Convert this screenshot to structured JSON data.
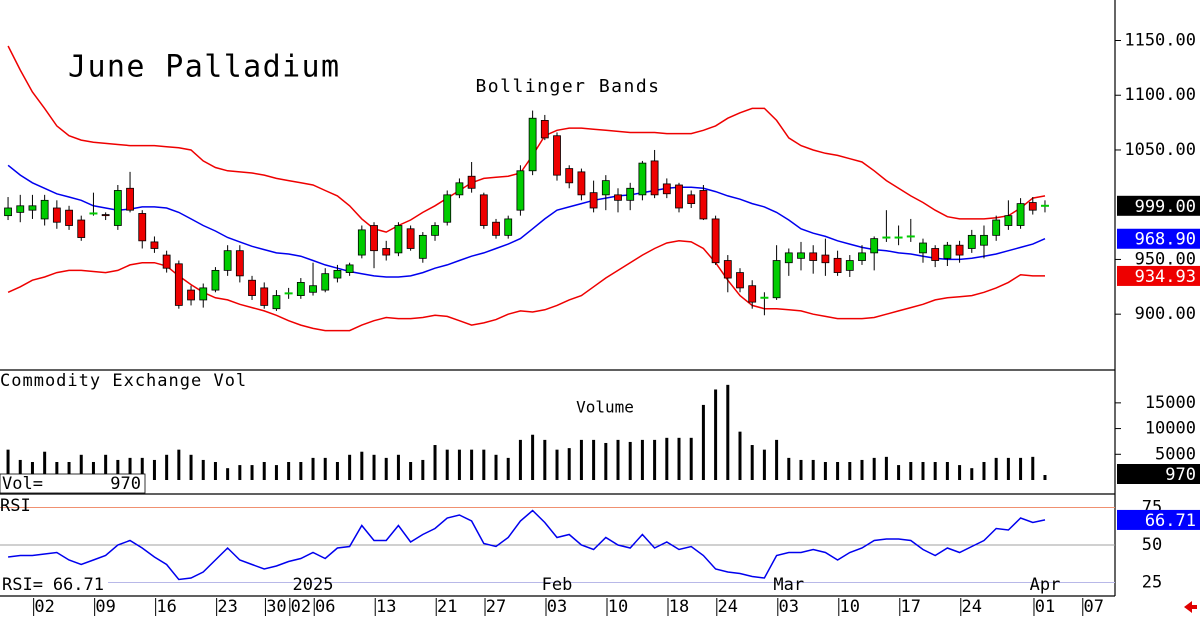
{
  "chart_data": [
    {
      "type": "candlestick",
      "title": "June Palladium",
      "subtitle": "Bollinger Bands",
      "open": [
        990,
        993,
        995,
        987,
        997,
        995,
        986,
        992,
        991,
        981,
        1015,
        992,
        966,
        954,
        946,
        922,
        913,
        922,
        940,
        958,
        931,
        924,
        905,
        919,
        917,
        920,
        922,
        933,
        938,
        954,
        981,
        960,
        956,
        978,
        951,
        972,
        984,
        1009,
        1026,
        1009,
        984,
        972,
        995,
        1031,
        1077,
        1063,
        1033,
        1030,
        1011,
        1009,
        1009,
        1004,
        1009,
        1040,
        1019,
        1018,
        1009,
        1013,
        987,
        949,
        938,
        926,
        915,
        915,
        947,
        951,
        956,
        954,
        951,
        940,
        949,
        956,
        970,
        970,
        971,
        956,
        960,
        951,
        963,
        960,
        963,
        972,
        981,
        981,
        1002,
        999
      ],
      "high": [
        1007,
        1009,
        1009,
        1009,
        1004,
        999,
        990,
        1011,
        993,
        1018,
        1030,
        995,
        971,
        958,
        949,
        926,
        928,
        943,
        963,
        963,
        935,
        929,
        922,
        924,
        933,
        947,
        942,
        945,
        947,
        981,
        984,
        967,
        984,
        981,
        975,
        984,
        1013,
        1024,
        1039,
        1011,
        987,
        990,
        1036,
        1086,
        1082,
        1066,
        1036,
        1033,
        1022,
        1027,
        1015,
        1020,
        1040,
        1050,
        1024,
        1020,
        1013,
        1018,
        990,
        954,
        942,
        931,
        920,
        963,
        960,
        966,
        963,
        969,
        958,
        954,
        963,
        971,
        995,
        981,
        987,
        969,
        963,
        966,
        967,
        977,
        981,
        990,
        1004,
        1006,
        1007,
        1004
      ],
      "low": [
        986,
        984,
        987,
        981,
        978,
        977,
        967,
        990,
        986,
        977,
        993,
        960,
        956,
        938,
        905,
        908,
        906,
        920,
        935,
        929,
        913,
        905,
        903,
        914,
        914,
        917,
        920,
        929,
        935,
        951,
        942,
        949,
        953,
        958,
        947,
        967,
        981,
        1006,
        1011,
        978,
        969,
        969,
        990,
        1027,
        1059,
        1022,
        1015,
        1004,
        993,
        995,
        993,
        995,
        1004,
        1006,
        1006,
        993,
        997,
        986,
        945,
        920,
        920,
        905,
        899,
        913,
        935,
        940,
        937,
        935,
        935,
        934,
        945,
        940,
        966,
        963,
        966,
        947,
        943,
        944,
        947,
        956,
        951,
        967,
        977,
        978,
        991,
        993
      ],
      "close": [
        997,
        999,
        999,
        1004,
        984,
        981,
        970,
        992,
        990,
        1013,
        995,
        967,
        960,
        942,
        908,
        913,
        924,
        940,
        958,
        935,
        917,
        908,
        917,
        919,
        929,
        926,
        937,
        940,
        945,
        977,
        958,
        954,
        981,
        960,
        972,
        981,
        1009,
        1020,
        1015,
        981,
        972,
        987,
        1031,
        1079,
        1061,
        1027,
        1020,
        1009,
        997,
        1022,
        1004,
        1015,
        1038,
        1009,
        1010,
        997,
        1001,
        987,
        947,
        933,
        924,
        911,
        915,
        949,
        956,
        956,
        949,
        947,
        938,
        949,
        956,
        969,
        970,
        970,
        971,
        965,
        949,
        963,
        954,
        972,
        972,
        986,
        990,
        1001,
        995,
        999
      ],
      "upper_band": [
        1145,
        1123,
        1103,
        1088,
        1072,
        1063,
        1059,
        1057,
        1056,
        1055,
        1054,
        1054,
        1054,
        1053,
        1052,
        1050,
        1040,
        1034,
        1031,
        1030,
        1029,
        1027,
        1024,
        1022,
        1020,
        1018,
        1013,
        1008,
        999,
        987,
        978,
        975,
        981,
        986,
        993,
        999,
        1006,
        1013,
        1020,
        1024,
        1025,
        1026,
        1029,
        1045,
        1063,
        1068,
        1070,
        1070,
        1069,
        1068,
        1067,
        1066,
        1066,
        1066,
        1065,
        1065,
        1065,
        1068,
        1072,
        1079,
        1084,
        1088,
        1088,
        1077,
        1061,
        1054,
        1050,
        1047,
        1045,
        1042,
        1039,
        1031,
        1022,
        1015,
        1008,
        1002,
        995,
        989,
        987,
        987,
        987,
        988,
        990,
        997,
        1006,
        1008
      ],
      "middle_band": [
        1036,
        1027,
        1020,
        1015,
        1010,
        1007,
        1004,
        999,
        997,
        995,
        996,
        998,
        998,
        997,
        993,
        987,
        981,
        976,
        970,
        966,
        962,
        959,
        956,
        955,
        953,
        949,
        945,
        942,
        939,
        937,
        935,
        934,
        934,
        935,
        938,
        942,
        945,
        949,
        953,
        956,
        960,
        964,
        969,
        978,
        987,
        995,
        998,
        1001,
        1004,
        1006,
        1008,
        1009,
        1011,
        1013,
        1015,
        1016,
        1016,
        1015,
        1012,
        1008,
        1005,
        1001,
        998,
        993,
        986,
        978,
        974,
        971,
        967,
        964,
        961,
        959,
        958,
        956,
        955,
        953,
        951,
        950,
        950,
        951,
        953,
        955,
        958,
        961,
        964,
        968.9
      ],
      "lower_band": [
        920,
        925,
        931,
        934,
        938,
        940,
        940,
        939,
        938,
        940,
        945,
        947,
        947,
        944,
        935,
        927,
        920,
        915,
        913,
        909,
        906,
        903,
        899,
        894,
        890,
        887,
        885,
        885,
        885,
        890,
        894,
        897,
        896,
        896,
        897,
        899,
        898,
        894,
        890,
        892,
        895,
        900,
        903,
        902,
        904,
        908,
        913,
        917,
        925,
        933,
        940,
        947,
        954,
        960,
        965,
        967,
        966,
        960,
        947,
        931,
        917,
        908,
        905,
        905,
        904,
        903,
        900,
        898,
        896,
        896,
        896,
        897,
        900,
        903,
        906,
        909,
        913,
        915,
        916,
        917,
        920,
        924,
        929,
        936,
        935,
        934.93
      ],
      "up_color": "#00cc00",
      "down_color": "#ee0000",
      "band_color": "#ee0000",
      "middle_color": "#0000ee",
      "xlim": [
        -0.66,
        90.74
      ],
      "ylim": [
        849,
        1187
      ],
      "yticks": [
        {
          "value": 900,
          "label": "900.00"
        },
        {
          "value": 950,
          "label": "950.00"
        },
        {
          "value": 1050,
          "label": "1050.00"
        },
        {
          "value": 1100,
          "label": "1100.00"
        },
        {
          "value": 1150,
          "label": "1150.00"
        }
      ],
      "last_value_labels": [
        {
          "value": 999,
          "label": "999.00",
          "color": "#000000"
        },
        {
          "value": 968.9,
          "label": "968.90",
          "color": "#0000ff"
        },
        {
          "value": 934.93,
          "label": "934.93",
          "color": "#ee0000"
        }
      ]
    },
    {
      "type": "bar",
      "label": "Commodity Exchange Vol",
      "title": "Volume",
      "readout_label": "Vol=",
      "values": [
        5900,
        3900,
        3500,
        5500,
        3500,
        3500,
        4900,
        3500,
        4900,
        3900,
        4300,
        4300,
        3900,
        4900,
        5900,
        4900,
        3900,
        3500,
        2300,
        2900,
        2900,
        3500,
        2900,
        3500,
        3500,
        4300,
        4300,
        3500,
        4900,
        5500,
        4900,
        4300,
        4900,
        3500,
        3900,
        6800,
        5900,
        5900,
        5900,
        5900,
        4900,
        4300,
        7800,
        8800,
        7800,
        5900,
        6200,
        7800,
        7800,
        7200,
        7800,
        7400,
        7800,
        7800,
        8200,
        8200,
        8200,
        14600,
        17600,
        18500,
        9400,
        6800,
        5900,
        7800,
        4300,
        3900,
        3900,
        3500,
        3500,
        3500,
        3900,
        4300,
        4500,
        2900,
        3500,
        3500,
        3500,
        3500,
        2900,
        2300,
        3500,
        4300,
        4300,
        4300,
        4500,
        970
      ],
      "color": "#000000",
      "xlim": [
        -0.66,
        90.74
      ],
      "ylim": [
        0,
        21000
      ],
      "yticks": [
        5000,
        10000,
        15000
      ]
    },
    {
      "type": "line",
      "label": "RSI",
      "readout_label": "RSI=",
      "values": [
        42,
        43,
        43,
        44,
        45,
        40,
        37,
        40,
        43,
        50,
        53,
        48,
        42,
        37,
        27,
        28,
        32,
        40,
        48,
        40,
        37,
        34,
        36,
        39,
        41,
        45,
        41,
        48,
        49,
        63,
        53,
        53,
        63,
        52,
        57,
        61,
        68,
        70,
        66,
        51,
        49,
        55,
        66,
        73,
        65,
        55,
        57,
        50,
        47,
        55,
        50,
        48,
        57,
        48,
        52,
        47,
        49,
        43,
        34,
        32,
        31,
        29,
        28,
        43,
        45,
        45,
        47,
        45,
        40,
        45,
        48,
        53,
        54,
        54,
        53,
        47,
        43,
        48,
        45,
        49,
        53,
        61,
        60,
        68,
        65,
        66.71
      ],
      "color": "#0000ee",
      "xlim": [
        -0.66,
        90.74
      ],
      "ylim": [
        16,
        84
      ],
      "yticks": [
        25,
        50,
        75
      ],
      "grid": true,
      "grid_colors": [
        "#b8b8e8",
        "#a0a0a0",
        "#f09070"
      ],
      "xticks": [
        {
          "value": 3,
          "label": "02"
        },
        {
          "value": 8,
          "label": "09"
        },
        {
          "value": 13,
          "label": "16"
        },
        {
          "value": 18,
          "label": "23"
        },
        {
          "value": 22,
          "label": "30"
        },
        {
          "value": 24,
          "label": "02"
        },
        {
          "value": 26,
          "label": "06"
        },
        {
          "value": 31,
          "label": "13"
        },
        {
          "value": 36,
          "label": "21"
        },
        {
          "value": 40,
          "label": "27"
        },
        {
          "value": 45,
          "label": "03"
        },
        {
          "value": 50,
          "label": "10"
        },
        {
          "value": 55,
          "label": "18"
        },
        {
          "value": 59,
          "label": "24"
        },
        {
          "value": 64,
          "label": "03"
        },
        {
          "value": 69,
          "label": "10"
        },
        {
          "value": 74,
          "label": "17"
        },
        {
          "value": 79,
          "label": "24"
        },
        {
          "value": 85,
          "label": "01"
        },
        {
          "value": 89,
          "label": "07"
        }
      ],
      "month_labels": [
        {
          "value": 25,
          "label": "2025"
        },
        {
          "value": 45,
          "label": "Feb"
        },
        {
          "value": 64,
          "label": "Mar"
        },
        {
          "value": 85,
          "label": "Apr"
        }
      ]
    }
  ]
}
